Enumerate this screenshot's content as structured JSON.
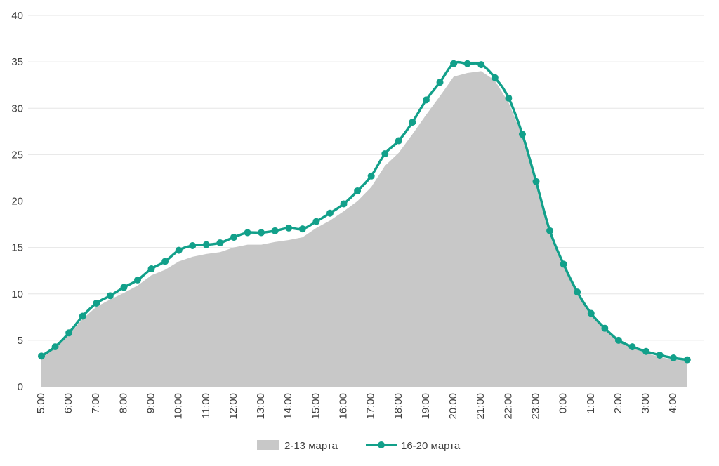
{
  "chart_data": {
    "type": "area",
    "title": "",
    "xlabel": "",
    "ylabel": "",
    "ylim": [
      0,
      40
    ],
    "y_ticks": [
      "0",
      "5",
      "10",
      "15",
      "20",
      "25",
      "30",
      "35",
      "40"
    ],
    "x_tick_labels": [
      "5:00",
      "6:00",
      "7:00",
      "8:00",
      "9:00",
      "10:00",
      "11:00",
      "12:00",
      "13:00",
      "14:00",
      "15:00",
      "16:00",
      "17:00",
      "18:00",
      "19:00",
      "20:00",
      "21:00",
      "22:00",
      "23:00",
      "0:00",
      "1:00",
      "2:00",
      "3:00",
      "4:00"
    ],
    "grid": true,
    "legend_position": "bottom",
    "series": [
      {
        "name": "2-13 марта",
        "type": "area",
        "color": "#c8c8c8",
        "values": [
          3.1,
          4.2,
          5.6,
          7.3,
          8.6,
          9.4,
          10.1,
          10.9,
          12.0,
          12.6,
          13.5,
          14.0,
          14.3,
          14.5,
          15.0,
          15.3,
          15.3,
          15.6,
          15.8,
          16.1,
          17.1,
          17.9,
          18.9,
          20.0,
          21.5,
          23.8,
          25.2,
          27.2,
          29.3,
          31.3,
          33.4,
          33.8,
          34.0,
          33.0,
          30.6,
          27.0,
          21.8,
          16.7,
          13.1,
          10.1,
          7.8,
          6.2,
          4.9,
          4.2,
          3.6,
          3.2,
          2.9,
          2.8
        ]
      },
      {
        "name": "16-20 марта",
        "type": "line",
        "color": "#12a08a",
        "values": [
          3.3,
          4.3,
          5.8,
          7.6,
          9.0,
          9.8,
          10.7,
          11.5,
          12.7,
          13.5,
          14.7,
          15.2,
          15.3,
          15.5,
          16.1,
          16.6,
          16.6,
          16.8,
          17.1,
          17.0,
          17.8,
          18.7,
          19.7,
          21.1,
          22.7,
          25.1,
          26.5,
          28.5,
          30.9,
          32.8,
          34.8,
          34.8,
          34.7,
          33.3,
          31.1,
          27.2,
          22.1,
          16.8,
          13.2,
          10.2,
          7.9,
          6.3,
          5.0,
          4.3,
          3.8,
          3.4,
          3.1,
          2.9
        ]
      }
    ]
  }
}
